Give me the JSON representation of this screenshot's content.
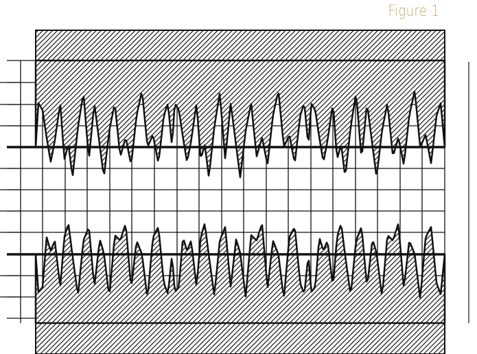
{
  "figure": {
    "label": "Figure 1",
    "label_color": "#c8a46a",
    "ink_color": "#111111",
    "paper_color": "#ffffff"
  },
  "diagram": {
    "description_type": "chart-recorder-trace",
    "fill_style": "diagonal-hatch",
    "upper_trace_peaks_per_cycle": 4,
    "lower_trace_peaks_per_cycle": 4,
    "cycles": 3
  }
}
